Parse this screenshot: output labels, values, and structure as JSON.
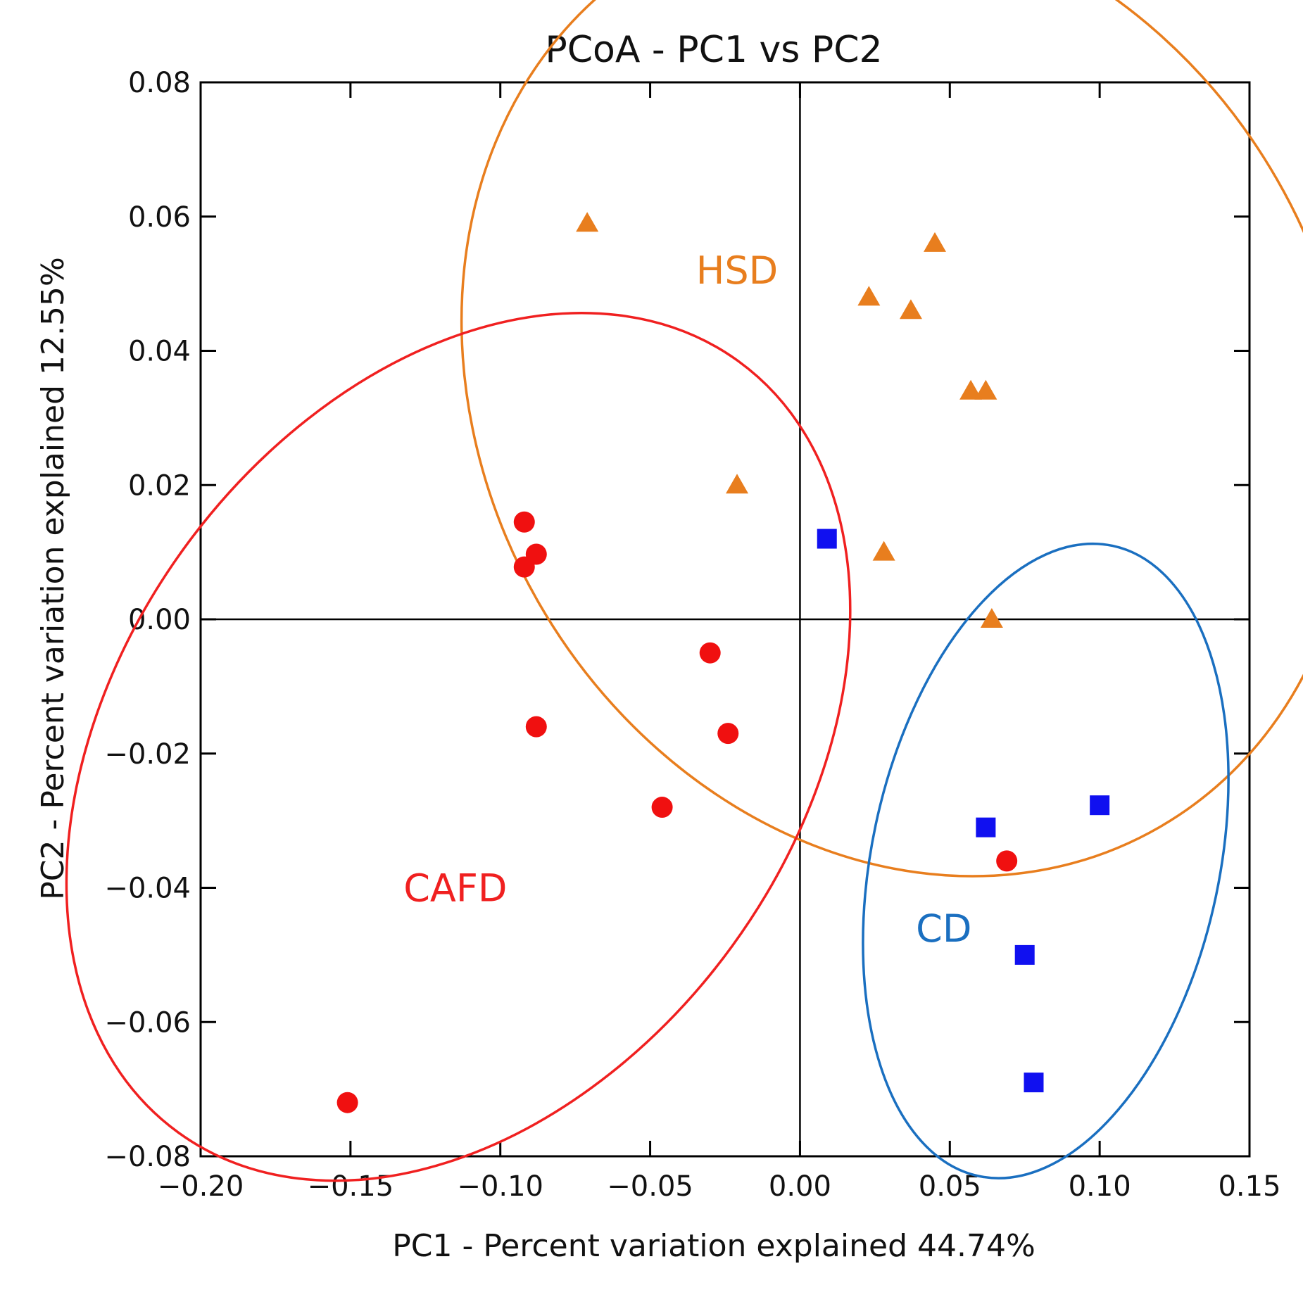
{
  "chart_data": {
    "type": "scatter",
    "title": "PCoA - PC1 vs PC2",
    "xlabel": "PC1 - Percent variation explained 44.74%",
    "ylabel": "PC2 - Percent variation explained 12.55%",
    "xlim": [
      -0.2,
      0.15
    ],
    "ylim": [
      -0.08,
      0.08
    ],
    "xticks": [
      -0.2,
      -0.15,
      -0.1,
      -0.05,
      0.0,
      0.05,
      0.1,
      0.15
    ],
    "yticks": [
      -0.08,
      -0.06,
      -0.04,
      -0.02,
      0.0,
      0.02,
      0.04,
      0.06,
      0.08
    ],
    "xtick_labels": [
      "−0.20",
      "−0.15",
      "−0.10",
      "−0.05",
      "0.00",
      "0.05",
      "0.10",
      "0.15"
    ],
    "ytick_labels": [
      "−0.08",
      "−0.06",
      "−0.04",
      "−0.02",
      "0.00",
      "0.02",
      "0.04",
      "0.06",
      "0.08"
    ],
    "zero_lines": true,
    "grid": false,
    "series": [
      {
        "name": "HSD",
        "marker": "triangle",
        "color": "#e87e1e",
        "points": [
          [
            -0.071,
            0.059
          ],
          [
            0.045,
            0.056
          ],
          [
            0.023,
            0.048
          ],
          [
            0.037,
            0.046
          ],
          [
            0.057,
            0.034
          ],
          [
            0.062,
            0.034
          ],
          [
            -0.021,
            0.02
          ],
          [
            0.028,
            0.01
          ],
          [
            0.064,
            0.0
          ]
        ]
      },
      {
        "name": "CAFD",
        "marker": "circle",
        "color": "#f01010",
        "points": [
          [
            -0.092,
            0.0145
          ],
          [
            -0.088,
            0.0097
          ],
          [
            -0.092,
            0.0078
          ],
          [
            -0.03,
            -0.005
          ],
          [
            -0.088,
            -0.016
          ],
          [
            -0.024,
            -0.017
          ],
          [
            -0.046,
            -0.028
          ],
          [
            0.069,
            -0.036
          ],
          [
            -0.151,
            -0.072
          ]
        ]
      },
      {
        "name": "CD",
        "marker": "square",
        "color": "#1010f0",
        "points": [
          [
            0.009,
            0.012
          ],
          [
            0.1,
            -0.0277
          ],
          [
            0.062,
            -0.031
          ],
          [
            0.075,
            -0.05
          ],
          [
            0.078,
            -0.069
          ]
        ]
      }
    ],
    "ellipses": [
      {
        "group": "HSD",
        "color": "#e87e1e",
        "cx": 0.036,
        "cy": 0.034,
        "rx": 0.142,
        "ry": 0.075,
        "angle_deg": 30
      },
      {
        "group": "CAFD",
        "color": "#f02020",
        "cx": -0.114,
        "cy": -0.019,
        "rx": 0.113,
        "ry": 0.071,
        "angle_deg": -36
      },
      {
        "group": "CD",
        "color": "#1a6fc0",
        "cx": 0.082,
        "cy": -0.036,
        "rx": 0.058,
        "ry": 0.048,
        "angle_deg": -12
      }
    ],
    "annotations": [
      {
        "text": "HSD",
        "x": -0.021,
        "y": 0.05,
        "color": "#e87e1e"
      },
      {
        "text": "CAFD",
        "x": -0.115,
        "y": -0.042,
        "color": "#f02020"
      },
      {
        "text": "CD",
        "x": 0.048,
        "y": -0.048,
        "color": "#1a6fc0"
      }
    ]
  }
}
